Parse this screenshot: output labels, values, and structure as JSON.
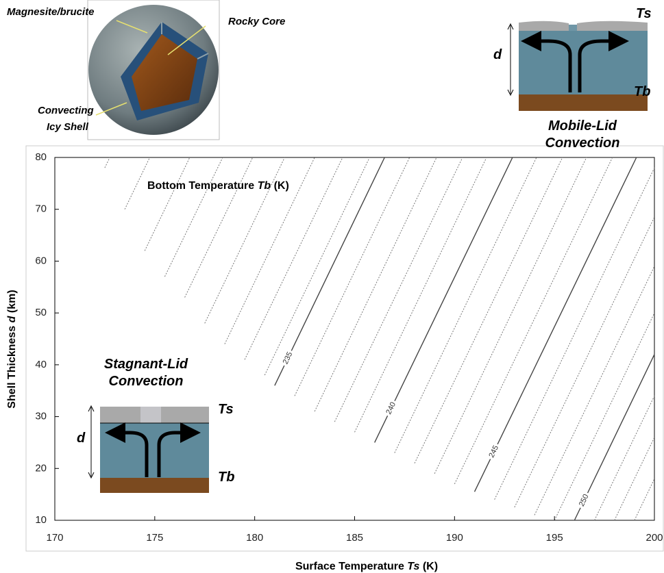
{
  "chart_data": {
    "type": "contour",
    "annotation": [
      "Bottom Temperature ",
      "Tb",
      " (K)"
    ],
    "xlabel": [
      "Surface Temperature ",
      "Ts",
      " (K)"
    ],
    "ylabel": [
      "Shell Thickness ",
      "d",
      " (km)"
    ],
    "xlim": [
      170,
      200
    ],
    "ylim": [
      10,
      80
    ],
    "xticks": [
      170,
      175,
      180,
      185,
      190,
      195,
      200
    ],
    "yticks": [
      10,
      20,
      30,
      40,
      50,
      60,
      70,
      80
    ],
    "color": "#777777",
    "label_color": "#444444",
    "contours": [
      {
        "level": 226,
        "x": [
          172.5,
          172.75
        ],
        "y": [
          78,
          80
        ]
      },
      {
        "level": 227,
        "x": [
          173.5,
          174.75
        ],
        "y": [
          70,
          80
        ]
      },
      {
        "level": 228,
        "x": [
          174.5,
          176.75
        ],
        "y": [
          62,
          80
        ]
      },
      {
        "level": 229,
        "x": [
          175.5,
          178.4
        ],
        "y": [
          57,
          80
        ]
      },
      {
        "level": 230,
        "x": [
          176.5,
          179.9
        ],
        "y": [
          53,
          80
        ]
      },
      {
        "level": 231,
        "x": [
          177.5,
          181.5
        ],
        "y": [
          48,
          80
        ]
      },
      {
        "level": 232,
        "x": [
          178.5,
          183
        ],
        "y": [
          44,
          80
        ]
      },
      {
        "level": 233,
        "x": [
          179.5,
          184.4
        ],
        "y": [
          41,
          80
        ]
      },
      {
        "level": 234,
        "x": [
          180.5,
          185.75
        ],
        "y": [
          38,
          80
        ]
      },
      {
        "level": 235,
        "x": [
          181,
          186.5
        ],
        "y": [
          36,
          80
        ],
        "labeled": true
      },
      {
        "level": 236,
        "x": [
          182,
          187.75
        ],
        "y": [
          34,
          80
        ]
      },
      {
        "level": 237,
        "x": [
          183,
          189.1
        ],
        "y": [
          31,
          80
        ]
      },
      {
        "level": 238,
        "x": [
          184,
          190.4
        ],
        "y": [
          29,
          80
        ]
      },
      {
        "level": 239,
        "x": [
          185,
          191.6
        ],
        "y": [
          27,
          80
        ]
      },
      {
        "level": 240,
        "x": [
          186,
          192.9
        ],
        "y": [
          25,
          80
        ],
        "labeled": true
      },
      {
        "level": 241,
        "x": [
          187,
          194.1
        ],
        "y": [
          23,
          80
        ]
      },
      {
        "level": 242,
        "x": [
          188,
          195.4
        ],
        "y": [
          21,
          80
        ]
      },
      {
        "level": 243,
        "x": [
          189,
          196.6
        ],
        "y": [
          19,
          80
        ]
      },
      {
        "level": 244,
        "x": [
          190,
          197.9
        ],
        "y": [
          17,
          80
        ]
      },
      {
        "level": 245,
        "x": [
          191,
          199.1
        ],
        "y": [
          15.5,
          80
        ],
        "labeled": true
      },
      {
        "level": 246,
        "x": [
          192,
          200
        ],
        "y": [
          14,
          78
        ]
      },
      {
        "level": 247,
        "x": [
          193,
          200
        ],
        "y": [
          12.5,
          68.5
        ]
      },
      {
        "level": 248,
        "x": [
          194,
          200
        ],
        "y": [
          11,
          59
        ]
      },
      {
        "level": 249,
        "x": [
          195,
          200
        ],
        "y": [
          10,
          50
        ]
      },
      {
        "level": 250,
        "x": [
          196,
          200
        ],
        "y": [
          10,
          42
        ],
        "labeled": true
      },
      {
        "level": 251,
        "x": [
          197,
          200
        ],
        "y": [
          10,
          34
        ]
      },
      {
        "level": 252,
        "x": [
          198,
          200
        ],
        "y": [
          10,
          26
        ]
      },
      {
        "level": 253,
        "x": [
          199,
          200
        ],
        "y": [
          10,
          18
        ]
      }
    ]
  },
  "insets": {
    "sphere": {
      "magnesite": "Magnesite/brucite",
      "core": "Rocky Core",
      "shell": [
        "Convecting",
        "Icy Shell"
      ]
    },
    "mobile_lid": {
      "title": [
        "Mobile-Lid",
        "Convection"
      ],
      "ts": "Ts",
      "tb": "Tb",
      "d": "d"
    },
    "stagnant_lid": {
      "title": [
        "Stagnant-Lid",
        "Convection"
      ],
      "ts": "Ts",
      "tb": "Tb",
      "d": "d"
    }
  }
}
